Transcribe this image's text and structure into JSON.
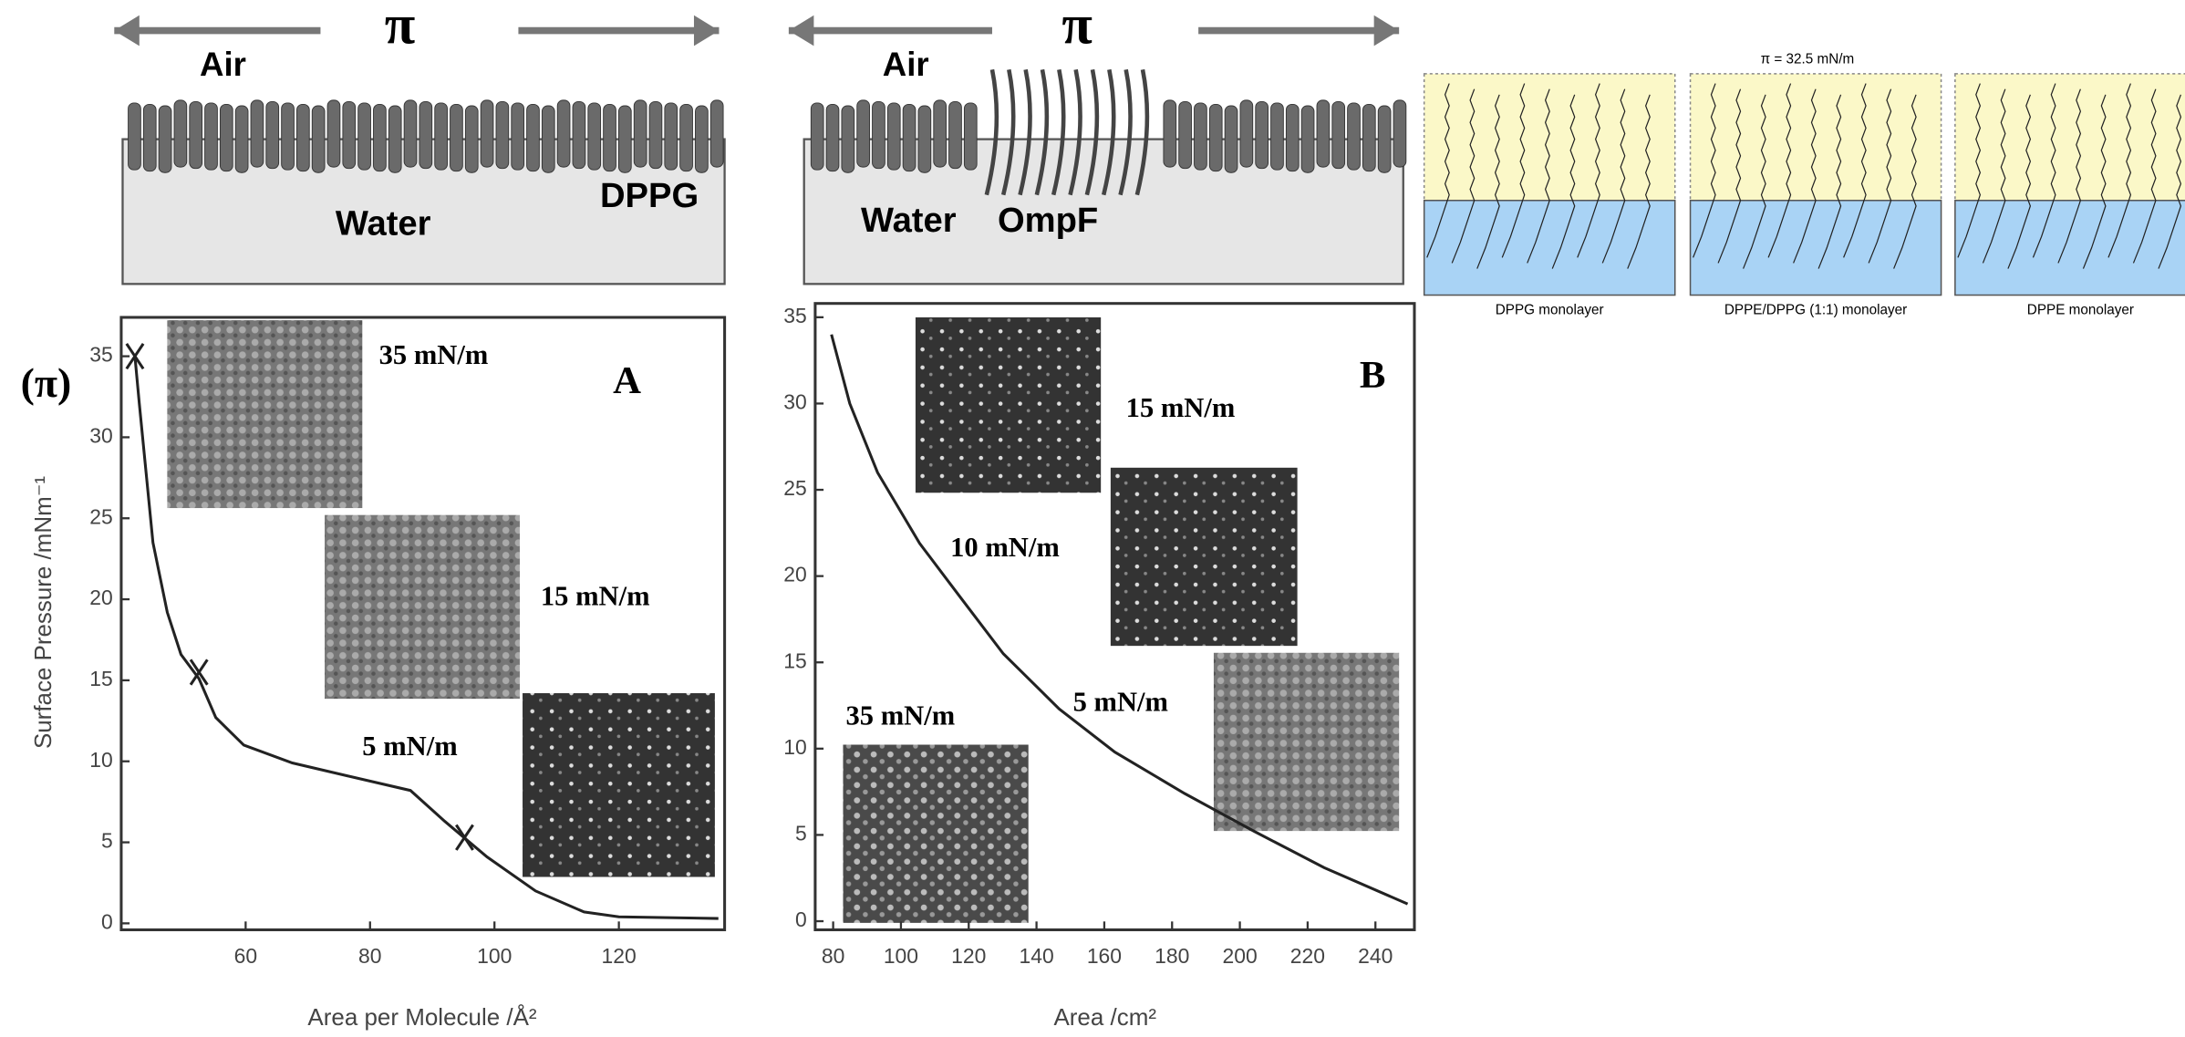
{
  "schematic_a": {
    "pi": "π",
    "air": "Air",
    "water": "Water",
    "molecule": "DPPG"
  },
  "schematic_b": {
    "pi": "π",
    "air": "Air",
    "water": "Water",
    "molecule": "OmpF"
  },
  "monolayers": {
    "pressure": "π = 32.5 mN/m",
    "labels": [
      "DPPG monolayer",
      "DPPE/DPPG (1:1) monolayer",
      "DPPE monolayer"
    ]
  },
  "chart_data": [
    {
      "type": "line",
      "panel_label": "A",
      "y_symbol": "(π)",
      "xlabel": "Area per Molecule /Å²",
      "ylabel": "Surface Pressure /mNm⁻¹",
      "x": [
        42.2,
        42.9,
        44,
        45.1,
        47.4,
        49.6,
        52.5,
        55.2,
        59.7,
        67.5,
        76.4,
        86.5,
        92,
        98.8,
        106.6,
        114.4,
        120,
        136
      ],
      "series": [
        {
          "color": "#222222",
          "values": [
            35,
            32.1,
            27.8,
            23.5,
            19.2,
            16.6,
            15.1,
            12.7,
            11,
            9.9,
            9.1,
            8.2,
            6.3,
            4.1,
            2,
            0.7,
            0.4,
            0.3
          ]
        }
      ],
      "markers": {
        "x": [
          42.2,
          52.5,
          95.2
        ],
        "y": [
          35,
          15.5,
          5.3
        ]
      },
      "annotations": [
        "35 mN/m",
        "15 mN/m",
        "5 mN/m"
      ],
      "xlim": [
        40,
        137
      ],
      "ylim": [
        -0.4,
        37.4
      ],
      "xticks": [
        60,
        80,
        100,
        120
      ],
      "yticks": [
        0,
        5,
        10,
        15,
        20,
        25,
        30,
        35
      ]
    },
    {
      "type": "line",
      "panel_label": "B",
      "xlabel": "Area /cm²",
      "x": [
        79.5,
        84.9,
        93.1,
        105.5,
        117.8,
        130.2,
        146.7,
        163.1,
        183.7,
        204.3,
        224.9,
        249.5
      ],
      "series": [
        {
          "color": "#222222",
          "values": [
            34,
            30,
            26,
            21.9,
            18.7,
            15.5,
            12.3,
            9.8,
            7.4,
            5.2,
            3.1,
            1.0
          ]
        }
      ],
      "annotations": [
        "15 mN/m",
        "10 mN/m",
        "5 mN/m",
        "35 mN/m"
      ],
      "xlim": [
        74.7,
        251.5
      ],
      "ylim": [
        -0.5,
        35.8
      ],
      "xticks": [
        80,
        100,
        120,
        140,
        160,
        180,
        200,
        220,
        240
      ],
      "yticks": [
        0,
        5,
        10,
        15,
        20,
        25,
        30,
        35
      ]
    }
  ]
}
